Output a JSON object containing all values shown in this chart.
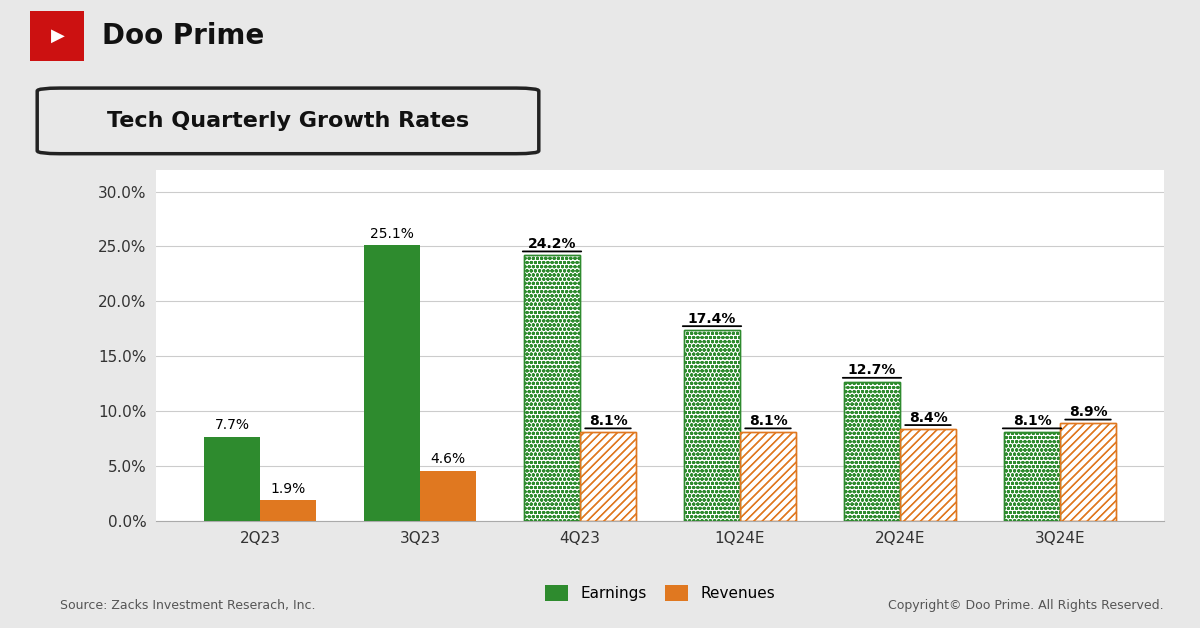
{
  "title": "Tech Quarterly Growth Rates",
  "categories": [
    "2Q23",
    "3Q23",
    "4Q23",
    "1Q24E",
    "2Q24E",
    "3Q24E"
  ],
  "earnings": [
    7.7,
    25.1,
    24.2,
    17.4,
    12.7,
    8.1
  ],
  "revenues": [
    1.9,
    4.6,
    8.1,
    8.1,
    8.4,
    8.9
  ],
  "earnings_color_solid": "#2e8b2e",
  "revenues_color_solid": "#e07820",
  "ylim": [
    0,
    32
  ],
  "yticks": [
    0.0,
    5.0,
    10.0,
    15.0,
    20.0,
    25.0,
    30.0
  ],
  "bar_width": 0.35,
  "bg_color": "#e8e8e8",
  "chart_bg": "#ffffff",
  "source_text": "Source: Zacks Investment Reserach, Inc.",
  "copyright_text": "Copyright© Doo Prime. All Rights Reserved.",
  "future_quarters": [
    "4Q23",
    "1Q24E",
    "2Q24E",
    "3Q24E"
  ],
  "label_fontsize": 10,
  "axis_fontsize": 11,
  "top_bar_height": 0.115
}
